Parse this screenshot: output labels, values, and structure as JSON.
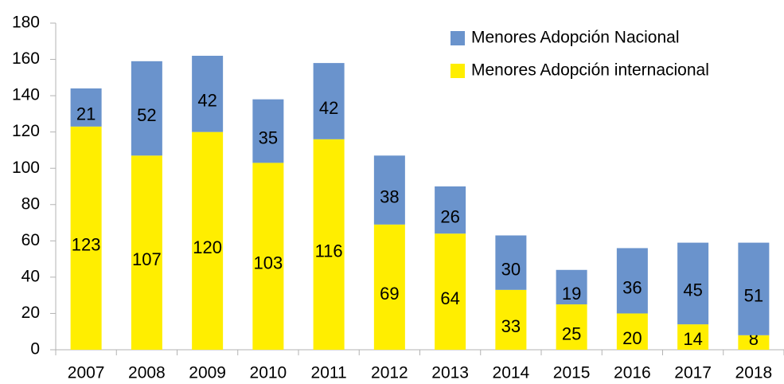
{
  "chart_data": {
    "type": "stacked_bar",
    "categories": [
      "2007",
      "2008",
      "2009",
      "2010",
      "2011",
      "2012",
      "2013",
      "2014",
      "2015",
      "2016",
      "2017",
      "2018"
    ],
    "series": [
      {
        "name": "Menores Adopción Nacional",
        "color": "#6a93cc",
        "values": [
          21,
          52,
          42,
          35,
          42,
          38,
          26,
          30,
          19,
          36,
          45,
          51
        ]
      },
      {
        "name": "Menores Adopción internacional",
        "color": "#ffee00",
        "values": [
          123,
          107,
          120,
          103,
          116,
          69,
          64,
          33,
          25,
          20,
          14,
          8
        ]
      }
    ],
    "ylim": [
      0,
      180
    ],
    "yticks": [
      0,
      20,
      40,
      60,
      80,
      100,
      120,
      140,
      160,
      180
    ],
    "legend": "top-right"
  }
}
